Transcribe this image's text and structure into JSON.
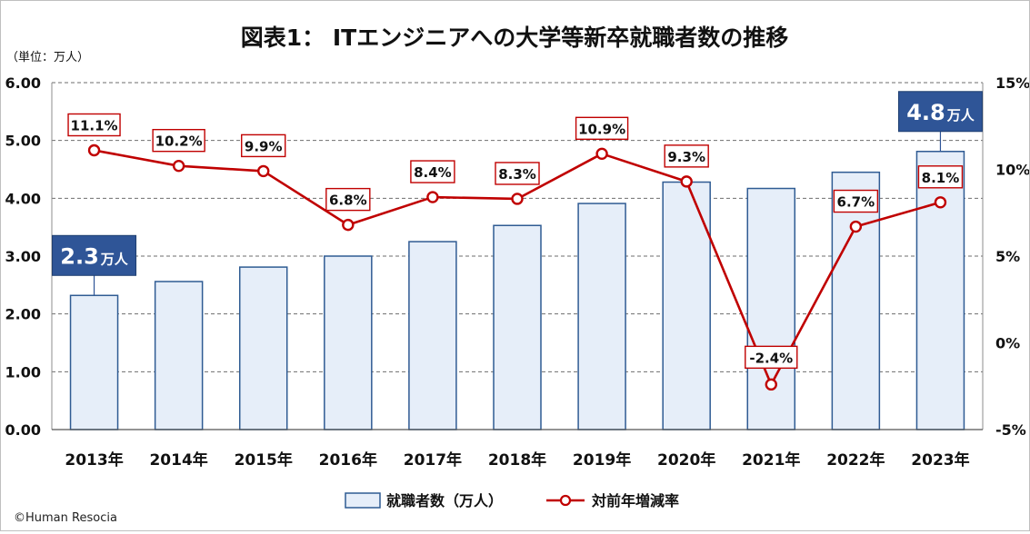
{
  "chart_data": {
    "type": "bar",
    "title": "図表1： ITエンジニアへの大学等新卒就職者数の推移",
    "unit_label": "（単位：万人）",
    "categories": [
      "2013年",
      "2014年",
      "2015年",
      "2016年",
      "2017年",
      "2018年",
      "2019年",
      "2020年",
      "2021年",
      "2022年",
      "2023年"
    ],
    "series": [
      {
        "name": "就職者数（万人）",
        "type": "bar",
        "axis": "left",
        "values": [
          2.32,
          2.56,
          2.81,
          3.0,
          3.25,
          3.53,
          3.91,
          4.28,
          4.17,
          4.45,
          4.81
        ]
      },
      {
        "name": "対前年増減率",
        "type": "line",
        "axis": "right",
        "values": [
          11.1,
          10.2,
          9.9,
          6.8,
          8.4,
          8.3,
          10.9,
          9.3,
          -2.4,
          6.7,
          8.1
        ],
        "labels": [
          "11.1%",
          "10.2%",
          "9.9%",
          "6.8%",
          "8.4%",
          "8.3%",
          "10.9%",
          "9.3%",
          "-2.4%",
          "6.7%",
          "8.1%"
        ]
      }
    ],
    "y_left": {
      "ylim": [
        0,
        6
      ],
      "ticks": [
        0,
        1,
        2,
        3,
        4,
        5,
        6
      ],
      "tick_labels": [
        "0.00",
        "1.00",
        "2.00",
        "3.00",
        "4.00",
        "5.00",
        "6.00"
      ]
    },
    "y_right": {
      "ylim": [
        -5,
        15
      ],
      "ticks": [
        -5,
        0,
        5,
        10,
        15
      ],
      "tick_labels": [
        "-5%",
        "0%",
        "5%",
        "10%",
        "15%"
      ]
    },
    "grid": true,
    "legend": "bottom",
    "callouts": [
      {
        "category_index": 0,
        "value": "2.3",
        "unit": "万人"
      },
      {
        "category_index": 10,
        "value": "4.8",
        "unit": "万人"
      }
    ],
    "colors": {
      "bar_fill": "#e6eef9",
      "bar_stroke": "#2f5b93",
      "line": "#c00000",
      "callout": "#2f5597",
      "grid": "#6e6e6e"
    }
  },
  "footer": {
    "copyright": "©Human Resocia"
  }
}
